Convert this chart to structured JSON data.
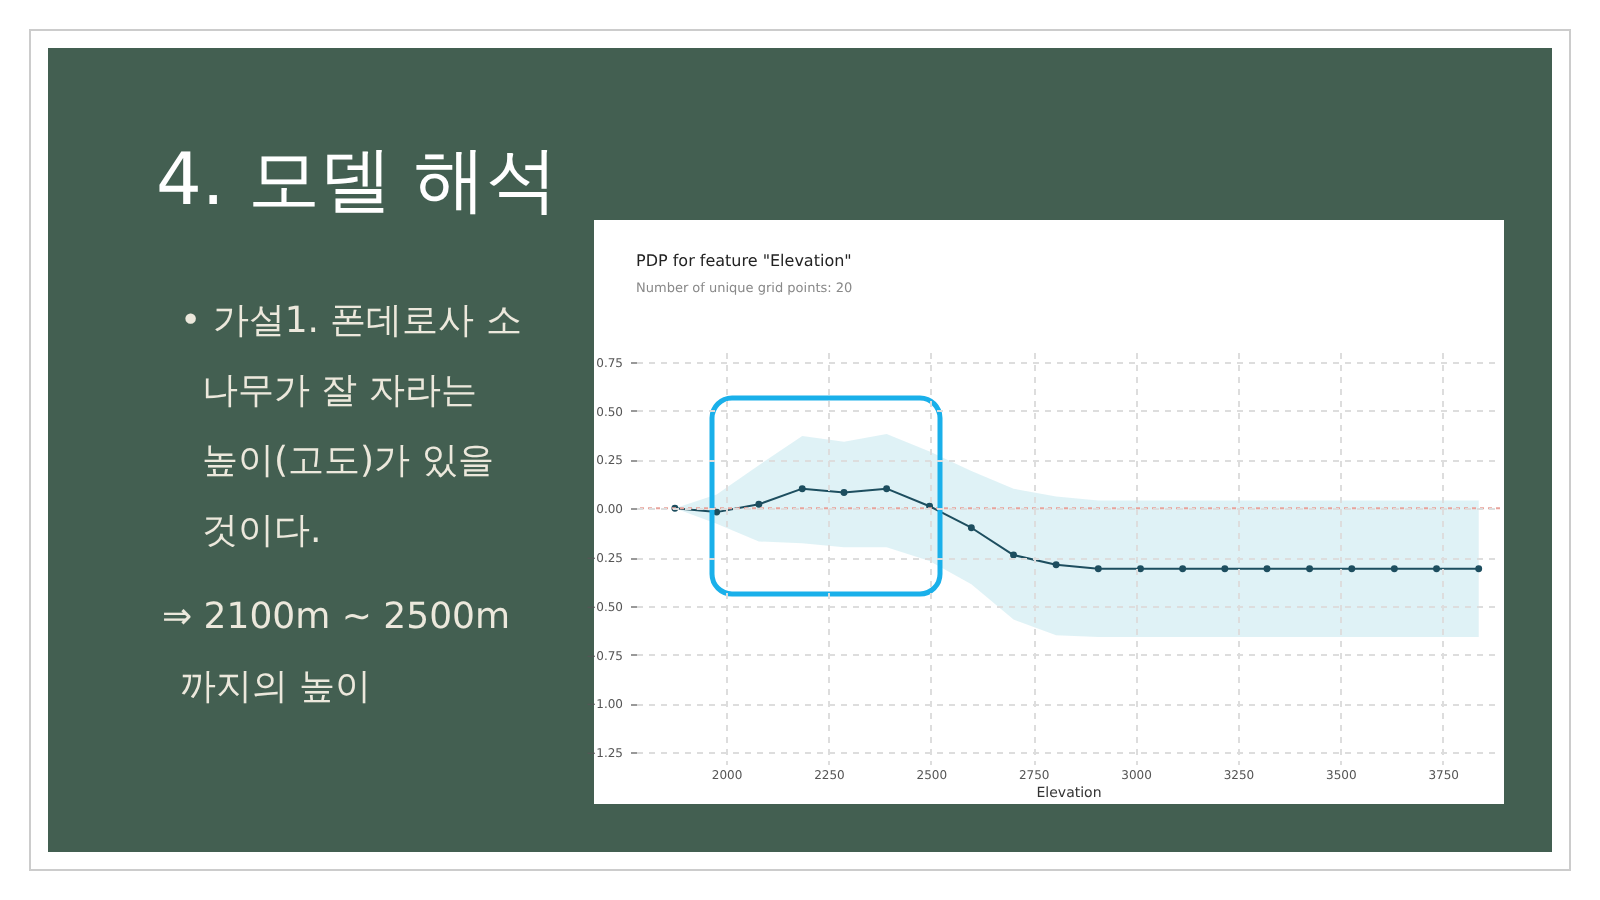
{
  "chart_data": {
    "type": "line",
    "title": "PDP for feature \"Elevation\"",
    "subtitle": "Number of unique grid points: 20",
    "xlabel": "Elevation",
    "x": [
      1875,
      1977,
      2080,
      2186,
      2288,
      2392,
      2497,
      2599,
      2702,
      2806,
      2909,
      3012,
      3115,
      3218,
      3321,
      3425,
      3528,
      3632,
      3735,
      3838
    ],
    "series": [
      {
        "color": "#1d4e5f",
        "values": [
          0.0,
          -0.02,
          0.02,
          0.1,
          0.08,
          0.1,
          0.01,
          -0.1,
          -0.24,
          -0.29,
          -0.31,
          -0.31,
          -0.31,
          -0.31,
          -0.31,
          -0.31,
          -0.31,
          -0.31,
          -0.31,
          -0.31
        ],
        "lower": [
          0.0,
          -0.08,
          -0.17,
          -0.18,
          -0.2,
          -0.2,
          -0.27,
          -0.39,
          -0.57,
          -0.65,
          -0.66,
          -0.66,
          -0.66,
          -0.66,
          -0.66,
          -0.66,
          -0.66,
          -0.66,
          -0.66,
          -0.66
        ],
        "upper": [
          0.0,
          0.07,
          0.22,
          0.37,
          0.34,
          0.38,
          0.29,
          0.19,
          0.1,
          0.06,
          0.04,
          0.04,
          0.04,
          0.04,
          0.04,
          0.04,
          0.04,
          0.04,
          0.04,
          0.04
        ]
      }
    ],
    "xlim": [
      1780,
      3890
    ],
    "ylim": [
      -1.31,
      0.8
    ],
    "xticks": [
      2000,
      2250,
      2500,
      2750,
      3000,
      3250,
      3500,
      3750
    ],
    "yticks": [
      {
        "value": -1.25,
        "label": "−1.25"
      },
      {
        "value": -1.0,
        "label": "−1.00"
      },
      {
        "value": -0.75,
        "label": "−0.75"
      },
      {
        "value": -0.5,
        "label": "−0.50"
      },
      {
        "value": -0.25,
        "label": "−0.25"
      },
      {
        "value": 0.0,
        "label": "0.00"
      },
      {
        "value": 0.25,
        "label": "0.25"
      },
      {
        "value": 0.5,
        "label": "0.50"
      },
      {
        "value": 0.75,
        "label": "0.75"
      }
    ],
    "ref_lines": [
      {
        "axis": "y",
        "value": 0,
        "color": "#e9a39b",
        "line_style": "dotted"
      }
    ],
    "grid": true,
    "marker": "circle",
    "line_style": "solid",
    "annotations": [
      "4. 모델 해석",
      "• 가설1. 폰데로사 소\n나무가 잘 자라는\n높이(고도)가 있을\n것이다.",
      "⇒ 2100m ~ 2500m\n까지의 높이"
    ]
  }
}
